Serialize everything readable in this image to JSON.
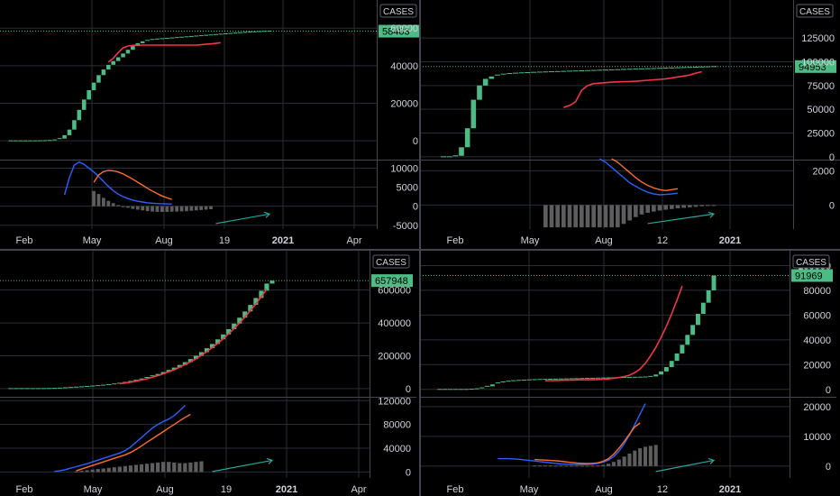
{
  "colors": {
    "background": "#000000",
    "grid": "#2a2e39",
    "axis_text": "#d1d4dc",
    "up_bar": "#26a69a",
    "bar_green": "#4dbb84",
    "badge": "#4dbb84",
    "orange": "#ff6d2d",
    "red": "#f23645",
    "blue": "#2962ff",
    "histogram": "#5d5d5d",
    "dash_green": "#4dbb84",
    "arrow": "#26a69a"
  },
  "ui": {
    "cases_label": "CASES"
  },
  "chart_data": [
    {
      "type": "line",
      "panel": "top-left",
      "legend_label": "CASES",
      "price_badge": "58403",
      "x_labels": [
        "Feb",
        "May",
        "Aug",
        "19",
        "2021",
        "Apr"
      ],
      "y_ticks_main": [
        "0",
        "20000",
        "40000",
        "60000"
      ],
      "y_ticks_osc": [
        "-5000",
        "0",
        "5000",
        "10000"
      ],
      "ylim_main": [
        -10000,
        75000
      ],
      "ylim_osc": [
        -6000,
        12000
      ],
      "bars": [
        0,
        0,
        0,
        0,
        0,
        0,
        50,
        100,
        200,
        500,
        1200,
        3000,
        6000,
        11000,
        16500,
        22000,
        27000,
        31000,
        35000,
        38000,
        40500,
        42500,
        44500,
        46500,
        48500,
        50500,
        52000,
        53000,
        53500,
        54000,
        54200,
        54400,
        54600,
        54800,
        55000,
        55200,
        55400,
        55600,
        55800,
        56000,
        56200,
        56400,
        56600,
        56800,
        57000,
        57200,
        57400,
        57600,
        57800,
        58000,
        58100,
        58200,
        58300,
        58403
      ],
      "orange_line": {
        "start_index": 20,
        "values": [
          42000,
          44000,
          47000,
          49500,
          50500,
          50800,
          51000,
          51000,
          51000,
          51000,
          51000,
          51000,
          51000,
          51000,
          51000,
          51000,
          51000,
          51000,
          51000,
          51200,
          51400,
          51600,
          51900,
          52300
        ]
      },
      "osc_orange": {
        "start_index": 17,
        "values": [
          6300,
          8200,
          9100,
          9400,
          9300,
          9000,
          8500,
          7800,
          7100,
          6300,
          5500,
          4700,
          4000,
          3300,
          2700,
          2200,
          1800
        ]
      },
      "osc_blue": {
        "start_index": 11,
        "values": [
          3000,
          7500,
          10800,
          11600,
          11000,
          10000,
          9000,
          7800,
          6500,
          5200,
          4100,
          3200,
          2500,
          2000,
          1600,
          1300,
          1100,
          900,
          800,
          700,
          650,
          600,
          550
        ]
      },
      "histogram": {
        "start_index": 17,
        "values": [
          4000,
          3200,
          2200,
          1400,
          800,
          300,
          -100,
          -400,
          -700,
          -900,
          -1100,
          -1300,
          -1400,
          -1500,
          -1500,
          -1500,
          -1450,
          -1400,
          -1350,
          -1300,
          -1200,
          -1100,
          -1000,
          -900,
          -800
        ]
      }
    },
    {
      "type": "line",
      "panel": "top-right",
      "legend_label": "CASES",
      "price_badge": "94953",
      "x_labels": [
        "Feb",
        "May",
        "Aug",
        "12",
        "2021"
      ],
      "y_ticks_main": [
        "0",
        "25000",
        "50000",
        "75000",
        "100000",
        "125000"
      ],
      "y_ticks_osc": [
        "0",
        "2000"
      ],
      "ylim_main": [
        -3000,
        165000
      ],
      "ylim_osc": [
        -1400,
        2600
      ],
      "bars": [
        0,
        0,
        1000,
        10000,
        30000,
        60000,
        75000,
        82000,
        84500,
        86000,
        87000,
        87600,
        88000,
        88300,
        88600,
        88900,
        89100,
        89300,
        89500,
        89700,
        89900,
        90100,
        90300,
        90500,
        90700,
        90900,
        91100,
        91300,
        91500,
        91700,
        91900,
        92100,
        92300,
        92500,
        92700,
        92900,
        93100,
        93300,
        93500,
        93700,
        93900,
        94100,
        94300,
        94500,
        94700,
        94953
      ],
      "orange_line": {
        "start_index": 20,
        "values": [
          52000,
          54000,
          58000,
          70000,
          75000,
          77000,
          77500,
          78000,
          78500,
          78800,
          79000,
          79200,
          79500,
          80000,
          80500,
          81000,
          81500,
          82000,
          83000,
          84000,
          85000,
          86000,
          88000,
          89500
        ]
      },
      "osc_orange": {
        "start_index": 28,
        "values": [
          2700,
          2500,
          2200,
          1900,
          1600,
          1350,
          1150,
          1000,
          900,
          850,
          900,
          950
        ]
      },
      "osc_blue": {
        "start_index": 26,
        "values": [
          2700,
          2500,
          2200,
          1900,
          1600,
          1300,
          1100,
          900,
          750,
          650,
          600,
          620,
          650,
          700
        ]
      },
      "histogram": {
        "start_index": 17,
        "values": [
          -1300,
          -1300,
          -1300,
          -1300,
          -1300,
          -1300,
          -1300,
          -1300,
          -1300,
          -1300,
          -1300,
          -1300,
          -1300,
          -1100,
          -900,
          -700,
          -550,
          -450,
          -380,
          -320,
          -270,
          -230,
          -190,
          -160,
          -130,
          -100,
          -70,
          -40,
          -20
        ]
      }
    },
    {
      "type": "line",
      "panel": "bottom-left",
      "legend_label": "CASES",
      "price_badge": "657948",
      "x_labels": [
        "Feb",
        "May",
        "Aug",
        "19",
        "2021",
        "Apr"
      ],
      "y_ticks_main": [
        "0",
        "200000",
        "400000",
        "600000"
      ],
      "y_ticks_osc": [
        "0",
        "40000",
        "80000",
        "120000"
      ],
      "ylim_main": [
        -50000,
        840000
      ],
      "ylim_osc": [
        -10000,
        125000
      ],
      "bars": [
        0,
        0,
        0,
        0,
        0,
        0,
        200,
        600,
        1500,
        3000,
        5000,
        7000,
        9000,
        11000,
        13000,
        15500,
        18000,
        21000,
        24500,
        28500,
        33000,
        38000,
        44000,
        51000,
        59000,
        68000,
        78000,
        89000,
        101000,
        114000,
        128000,
        144000,
        161000,
        180000,
        200000,
        222000,
        246000,
        272000,
        300000,
        330000,
        362000,
        396000,
        432000,
        470000,
        510000,
        552000,
        596000,
        640000,
        657948
      ],
      "orange_line": {
        "start_index": 20,
        "values": [
          30000,
          34000,
          39000,
          45000,
          52000,
          60000,
          69000,
          79000,
          90000,
          102000,
          115000,
          130000,
          146000,
          163000,
          182000,
          203000,
          225000,
          250000,
          276000,
          304000,
          334000,
          366000,
          400000,
          436000,
          475000,
          516000,
          560000,
          606000
        ]
      },
      "osc_orange": {
        "start_index": 12,
        "values": [
          2000,
          5000,
          8000,
          11000,
          14000,
          17000,
          20000,
          23000,
          26000,
          29000,
          33000,
          38000,
          44000,
          50000,
          56000,
          62000,
          68000,
          74000,
          80000,
          86000,
          92000,
          97000
        ]
      },
      "osc_blue": {
        "start_index": 8,
        "values": [
          1000,
          2000,
          4000,
          6500,
          9000,
          11500,
          14000,
          17000,
          20000,
          23000,
          26000,
          29000,
          32000,
          36000,
          42000,
          50000,
          58000,
          66000,
          74000,
          80000,
          85000,
          89000,
          95000,
          103000,
          112000
        ]
      },
      "histogram": {
        "start_index": 12,
        "values": [
          1000,
          2000,
          3000,
          4000,
          5000,
          6000,
          7000,
          8000,
          9000,
          10000,
          11000,
          12000,
          13000,
          14000,
          15000,
          16000,
          17000,
          17000,
          16000,
          15000,
          15000,
          16000,
          17000,
          18000
        ]
      }
    },
    {
      "type": "line",
      "panel": "bottom-right",
      "legend_label": "CASES",
      "price_badge": "91969",
      "x_labels": [
        "Feb",
        "May",
        "Aug",
        "12",
        "2021"
      ],
      "y_ticks_main": [
        "0",
        "20000",
        "40000",
        "60000",
        "80000",
        "100000"
      ],
      "y_ticks_osc": [
        "0",
        "10000",
        "20000"
      ],
      "ylim_main": [
        -6000,
        112000
      ],
      "ylim_osc": [
        -4000,
        23000
      ],
      "bars": [
        0,
        0,
        0,
        0,
        0,
        0,
        200,
        500,
        1200,
        2500,
        4000,
        5200,
        6000,
        6600,
        7000,
        7300,
        7500,
        7700,
        7900,
        8000,
        8100,
        8200,
        8300,
        8400,
        8500,
        8600,
        8700,
        8800,
        8900,
        9000,
        9100,
        9200,
        9300,
        9400,
        9500,
        9600,
        9700,
        9800,
        9900,
        10000,
        10500,
        12000,
        14500,
        18000,
        23000,
        29000,
        36000,
        44000,
        52000,
        61000,
        70000,
        80000,
        91969
      ],
      "orange_line": {
        "start_index": 20,
        "values": [
          7000,
          7100,
          7200,
          7300,
          7400,
          7500,
          7600,
          7700,
          7800,
          7900,
          8000,
          8200,
          8500,
          9000,
          9600,
          10300,
          11500,
          13500,
          16500,
          21000,
          27000,
          34000,
          42000,
          51000,
          61000,
          72000,
          83500
        ]
      },
      "osc_orange": {
        "start_index": 18,
        "values": [
          2200,
          2100,
          2000,
          1900,
          1800,
          1600,
          1400,
          1200,
          1000,
          900,
          850,
          900,
          1100,
          1600,
          2500,
          4000,
          6000,
          8300,
          10800,
          13200,
          14500
        ]
      },
      "osc_blue": {
        "start_index": 11,
        "values": [
          2500,
          2500,
          2500,
          2400,
          2300,
          2100,
          1900,
          1700,
          1500,
          1300,
          1100,
          900,
          700,
          600,
          550,
          500,
          500,
          550,
          650,
          900,
          1300,
          2000,
          3200,
          5000,
          7500,
          10500,
          14000,
          17500,
          21000
        ]
      },
      "histogram": {
        "start_index": 18,
        "values": [
          200,
          200,
          200,
          200,
          150,
          150,
          100,
          100,
          100,
          100,
          100,
          150,
          200,
          400,
          800,
          1400,
          2200,
          3200,
          4200,
          5200,
          6000,
          6500,
          6800,
          7100
        ]
      }
    }
  ]
}
